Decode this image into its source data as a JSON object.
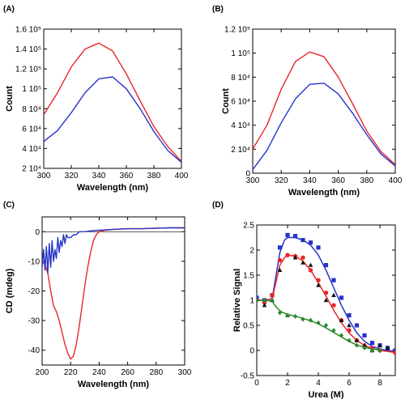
{
  "colors": {
    "red": "#e8262b",
    "blue": "#2634c8",
    "green": "#2a8a2a",
    "black": "#111111"
  },
  "chart_data": [
    {
      "panel": "(A)",
      "type": "line",
      "xlabel": "Wavelength (nm)",
      "ylabel": "Count",
      "xlim": [
        300,
        400
      ],
      "ylim": [
        20000,
        160000
      ],
      "xticks": [
        "300",
        "320",
        "340",
        "360",
        "380",
        "400"
      ],
      "yticks": [
        {
          "v": 20000,
          "t": "2 10⁴"
        },
        {
          "v": 40000,
          "t": "4 10⁴"
        },
        {
          "v": 60000,
          "t": "6 10⁴"
        },
        {
          "v": 80000,
          "t": "8 10⁴"
        },
        {
          "v": 100000,
          "t": "1 10⁵"
        },
        {
          "v": 120000,
          "t": "1.2 10⁵"
        },
        {
          "v": 140000,
          "t": "1.4 10⁵"
        },
        {
          "v": 160000,
          "t": "1.6 10⁵"
        }
      ],
      "series": [
        {
          "color": "red",
          "x": [
            300,
            310,
            320,
            330,
            340,
            350,
            360,
            370,
            380,
            390,
            400
          ],
          "y": [
            74000,
            96000,
            122000,
            140000,
            146000,
            138000,
            115000,
            88000,
            62000,
            42000,
            27000
          ]
        },
        {
          "color": "blue",
          "x": [
            300,
            310,
            320,
            330,
            340,
            350,
            360,
            370,
            380,
            390,
            400
          ],
          "y": [
            47000,
            58000,
            76000,
            96000,
            110000,
            112000,
            100000,
            80000,
            57000,
            38000,
            26000
          ]
        }
      ]
    },
    {
      "panel": "(B)",
      "type": "line",
      "xlabel": "Wavelength (nm)",
      "ylabel": "Count",
      "xlim": [
        300,
        400
      ],
      "ylim": [
        0,
        120000
      ],
      "xticks": [
        "300",
        "320",
        "340",
        "360",
        "380",
        "400"
      ],
      "yticks": [
        {
          "v": 0,
          "t": "0"
        },
        {
          "v": 20000,
          "t": "2 10⁴"
        },
        {
          "v": 40000,
          "t": "4 10⁴"
        },
        {
          "v": 60000,
          "t": "6 10⁴"
        },
        {
          "v": 80000,
          "t": "8 10⁴"
        },
        {
          "v": 100000,
          "t": "1 10⁵"
        },
        {
          "v": 120000,
          "t": "1.2 10⁵"
        }
      ],
      "series": [
        {
          "color": "red",
          "x": [
            300,
            310,
            320,
            330,
            340,
            350,
            360,
            370,
            380,
            390,
            400
          ],
          "y": [
            20000,
            40000,
            70000,
            93000,
            101000,
            97000,
            80000,
            58000,
            35000,
            18000,
            7000
          ]
        },
        {
          "color": "blue",
          "x": [
            300,
            310,
            320,
            330,
            340,
            350,
            360,
            370,
            380,
            390,
            400
          ],
          "y": [
            3000,
            19000,
            42000,
            62000,
            74000,
            75000,
            66000,
            50000,
            32000,
            16000,
            6000
          ]
        }
      ]
    },
    {
      "panel": "(C)",
      "type": "line",
      "xlabel": "Wavelength (nm)",
      "ylabel": "CD (mdeg)",
      "xlim": [
        200,
        300
      ],
      "ylim": [
        -45,
        5
      ],
      "xticks": [
        "200",
        "220",
        "240",
        "260",
        "280",
        "300"
      ],
      "yticks": [
        {
          "v": -40,
          "t": "-40"
        },
        {
          "v": -30,
          "t": "-30"
        },
        {
          "v": -20,
          "t": "-20"
        },
        {
          "v": -10,
          "t": "-10"
        },
        {
          "v": 0,
          "t": "0"
        }
      ],
      "series": [
        {
          "color": "red",
          "x": [
            200,
            202,
            204,
            206,
            208,
            210,
            212,
            214,
            216,
            218,
            220,
            222,
            224,
            226,
            228,
            230,
            232,
            234,
            236,
            238,
            240,
            244,
            250,
            260,
            270,
            280,
            290,
            300
          ],
          "y": [
            -10,
            -11,
            -14,
            -20,
            -25,
            -27,
            -30,
            -34,
            -38,
            -41,
            -43,
            -42,
            -38,
            -32,
            -25,
            -18,
            -12,
            -7,
            -3,
            -1,
            0,
            0.5,
            0.8,
            1,
            1,
            1.2,
            1.3,
            1.3
          ]
        },
        {
          "color": "blue",
          "x": [
            200,
            201,
            202,
            203,
            204,
            205,
            206,
            207,
            208,
            209,
            210,
            211,
            212,
            213,
            214,
            215,
            216,
            217,
            218,
            220,
            222,
            224,
            226,
            228,
            230,
            234,
            240,
            250,
            260,
            270,
            280,
            290,
            300
          ],
          "y": [
            -12,
            -6,
            -13,
            -5,
            -14,
            -4,
            -12,
            -3,
            -10,
            -6,
            -9,
            -2,
            -7,
            -3,
            -5,
            -1,
            -4,
            -1,
            -2,
            -2,
            -1,
            -1,
            0,
            0,
            0,
            0.3,
            0.5,
            0.8,
            1,
            1,
            1.2,
            1.3,
            1.3
          ]
        }
      ]
    },
    {
      "panel": "(D)",
      "type": "scatter",
      "xlabel": "Urea (M)",
      "ylabel": "Relative Signal",
      "xlim": [
        0,
        9
      ],
      "ylim": [
        -0.5,
        2.5
      ],
      "xticks": [
        "0",
        "2",
        "4",
        "6",
        "8"
      ],
      "yticks": [
        {
          "v": -0.5,
          "t": "-0.5"
        },
        {
          "v": 0,
          "t": "0"
        },
        {
          "v": 0.5,
          "t": "0.5"
        },
        {
          "v": 1,
          "t": "1"
        },
        {
          "v": 1.5,
          "t": "1.5"
        },
        {
          "v": 2,
          "t": "2"
        },
        {
          "v": 2.5,
          "t": "2.5"
        }
      ],
      "series": [
        {
          "color": "blue",
          "marker": "square",
          "x": [
            0,
            0.5,
            1,
            1.5,
            2,
            2.5,
            3,
            3.5,
            4,
            4.5,
            5,
            5.5,
            6,
            6.5,
            7,
            7.5,
            8,
            8.5,
            9
          ],
          "y": [
            1.05,
            1.0,
            1.1,
            2.05,
            2.3,
            2.28,
            2.2,
            2.15,
            2.05,
            1.7,
            1.4,
            1.05,
            0.7,
            0.5,
            0.3,
            0.15,
            0.1,
            0.05,
            0.0
          ],
          "fit_x": [
            0,
            0.5,
            1,
            1.2,
            1.5,
            1.8,
            2,
            2.5,
            3,
            3.5,
            4,
            4.5,
            5,
            5.5,
            6,
            6.5,
            7,
            7.5,
            8,
            8.5,
            9
          ],
          "fit_y": [
            1.0,
            1.0,
            1.03,
            1.4,
            1.95,
            2.2,
            2.25,
            2.25,
            2.2,
            2.1,
            1.9,
            1.6,
            1.25,
            0.9,
            0.6,
            0.35,
            0.18,
            0.08,
            0.03,
            0.0,
            -0.02
          ]
        },
        {
          "color": "red",
          "marker": "circle",
          "x": [
            0,
            0.5,
            1,
            1.5,
            2,
            2.5,
            3,
            3.5,
            4,
            4.5,
            5,
            5.5,
            6,
            6.5,
            7,
            7.5,
            8,
            9
          ],
          "y": [
            1.0,
            0.95,
            1.1,
            1.8,
            1.9,
            1.88,
            1.85,
            1.6,
            1.4,
            1.15,
            0.9,
            0.6,
            0.4,
            0.2,
            0.1,
            0.05,
            0.0,
            -0.05
          ],
          "fit_x": [
            0,
            0.5,
            1,
            1.2,
            1.5,
            1.8,
            2,
            2.5,
            3,
            3.5,
            4,
            4.5,
            5,
            5.5,
            6,
            6.5,
            7,
            7.5,
            8,
            8.5,
            9
          ],
          "fit_y": [
            1.0,
            1.0,
            1.03,
            1.3,
            1.7,
            1.85,
            1.9,
            1.88,
            1.78,
            1.6,
            1.35,
            1.08,
            0.8,
            0.55,
            0.35,
            0.2,
            0.1,
            0.04,
            0.0,
            -0.02,
            -0.04
          ]
        },
        {
          "color": "black",
          "marker": "triangle",
          "x": [
            0.5,
            1,
            1.5,
            2,
            2.5,
            3,
            3.5,
            4,
            4.5,
            5,
            5.5,
            6,
            6.5,
            7,
            7.5,
            8,
            8.5
          ],
          "y": [
            0.9,
            1.0,
            1.6,
            0.7,
            1.85,
            1.75,
            1.7,
            1.3,
            1.0,
            1.1,
            0.6,
            0.5,
            0.2,
            0.1,
            0.0,
            0.1,
            0.05
          ]
        },
        {
          "color": "green",
          "marker": "diamond",
          "x": [
            0,
            0.5,
            1,
            1.5,
            2,
            2.5,
            3,
            3.5,
            4,
            4.5,
            5,
            5.5,
            6,
            6.5,
            7,
            7.5,
            8
          ],
          "y": [
            1.0,
            1.0,
            1.0,
            0.75,
            0.7,
            0.68,
            0.62,
            0.6,
            0.55,
            0.5,
            0.4,
            0.3,
            0.2,
            0.1,
            0.05,
            0.0,
            0.0
          ],
          "fit_x": [
            0,
            0.5,
            1,
            1.3,
            1.6,
            2,
            2.5,
            3,
            3.5,
            4,
            4.5,
            5,
            5.5,
            6,
            6.5,
            7,
            7.5,
            8
          ],
          "fit_y": [
            1.0,
            1.0,
            0.98,
            0.85,
            0.77,
            0.72,
            0.68,
            0.64,
            0.59,
            0.53,
            0.45,
            0.36,
            0.27,
            0.18,
            0.11,
            0.06,
            0.03,
            0.01
          ]
        }
      ]
    }
  ]
}
